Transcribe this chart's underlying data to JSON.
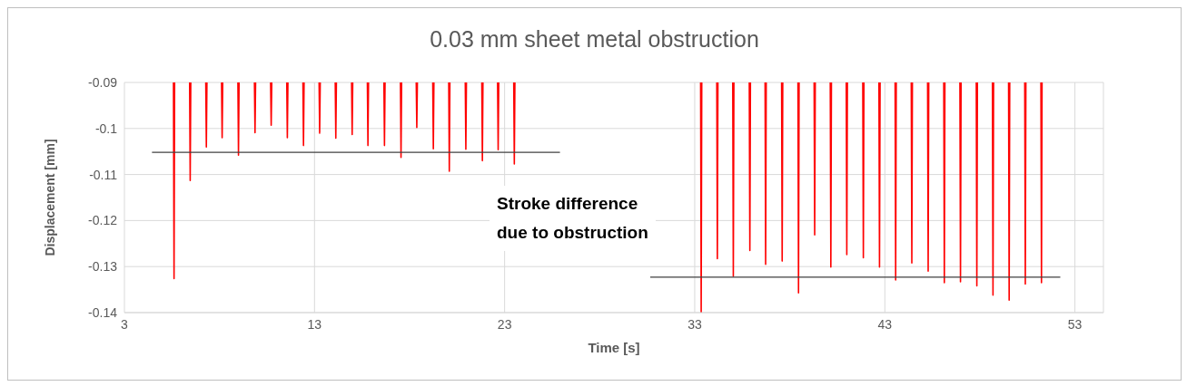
{
  "chart_data": {
    "type": "line",
    "title": "0.03 mm sheet metal obstruction",
    "xlabel": "Time [s]",
    "ylabel": "Displacement [mm]",
    "annotations": [
      "Stroke difference\ndue to obstruction"
    ],
    "xlim": [
      3,
      54.5
    ],
    "xticks": [
      3,
      13,
      23,
      33,
      43,
      53
    ],
    "ylim": [
      -0.14,
      -0.09
    ],
    "yticks": [
      -0.14,
      -0.13,
      -0.12,
      -0.11,
      -0.1,
      -0.09
    ],
    "grid": true,
    "marker": "none",
    "line_style": "solid",
    "series": [
      {
        "color": "#ff0000",
        "x": [
          5.58,
          5.61,
          5.64,
          5.66,
          6.43,
          6.46,
          6.49,
          6.51,
          7.28,
          7.31,
          7.34,
          7.36,
          8.11,
          8.14,
          8.17,
          8.19,
          8.97,
          9.0,
          9.03,
          9.05,
          9.84,
          9.87,
          9.9,
          9.92,
          10.69,
          10.72,
          10.75,
          10.77,
          11.54,
          11.57,
          11.6,
          11.62,
          12.39,
          12.42,
          12.45,
          12.47,
          13.24,
          13.27,
          13.3,
          13.32,
          14.09,
          14.12,
          14.15,
          14.17,
          14.95,
          14.98,
          15.01,
          15.03,
          15.78,
          15.81,
          15.84,
          15.86,
          16.65,
          16.68,
          16.71,
          16.73,
          17.52,
          17.55,
          17.58,
          17.6,
          18.35,
          18.38,
          18.41,
          18.43,
          19.22,
          19.25,
          19.28,
          19.3,
          20.06,
          20.09,
          20.12,
          20.14,
          20.93,
          20.96,
          20.99,
          21.01,
          21.8,
          21.83,
          21.86,
          21.88,
          22.63,
          22.66,
          22.69,
          22.71,
          23.48,
          23.51,
          23.54,
          23.56,
          33.31,
          33.34,
          33.37,
          33.39,
          34.16,
          34.19,
          34.22,
          34.24,
          35.0,
          35.03,
          35.06,
          35.08,
          35.87,
          35.9,
          35.93,
          35.95,
          36.7,
          36.73,
          36.76,
          36.78,
          37.57,
          37.6,
          37.63,
          37.65,
          38.43,
          38.46,
          38.49,
          38.51,
          39.28,
          39.31,
          39.34,
          39.36,
          40.13,
          40.16,
          40.19,
          40.21,
          40.97,
          41.0,
          41.03,
          41.05,
          41.84,
          41.87,
          41.9,
          41.92,
          42.69,
          42.72,
          42.75,
          42.77,
          43.54,
          43.57,
          43.6,
          43.62,
          44.39,
          44.42,
          44.45,
          44.47,
          45.25,
          45.28,
          45.31,
          45.33,
          46.1,
          46.13,
          46.16,
          46.18,
          46.95,
          46.98,
          47.01,
          47.03,
          47.81,
          47.84,
          47.87,
          47.89,
          48.66,
          48.69,
          48.72,
          48.74,
          49.51,
          49.54,
          49.57,
          49.59,
          50.36,
          50.39,
          50.42,
          50.44,
          51.21,
          51.24,
          51.27
        ],
        "values": [
          -0.09,
          -0.1326,
          -0.09,
          null,
          -0.09,
          -0.1113,
          -0.09,
          null,
          -0.09,
          -0.104,
          -0.09,
          null,
          -0.09,
          -0.102,
          -0.09,
          null,
          -0.09,
          -0.1058,
          -0.09,
          null,
          -0.09,
          -0.1009,
          -0.09,
          null,
          -0.09,
          -0.0993,
          -0.09,
          null,
          -0.09,
          -0.102,
          -0.09,
          null,
          -0.09,
          -0.1037,
          -0.09,
          null,
          -0.09,
          -0.101,
          -0.09,
          null,
          -0.09,
          -0.1021,
          -0.09,
          null,
          -0.09,
          -0.1013,
          -0.09,
          null,
          -0.09,
          -0.1037,
          -0.09,
          null,
          -0.09,
          -0.1037,
          -0.09,
          null,
          -0.09,
          -0.1063,
          -0.09,
          null,
          -0.09,
          -0.0998,
          -0.09,
          null,
          -0.09,
          -0.1044,
          -0.09,
          null,
          -0.09,
          -0.1093,
          -0.09,
          null,
          -0.09,
          -0.1045,
          -0.09,
          null,
          -0.09,
          -0.107,
          -0.09,
          null,
          -0.09,
          -0.1046,
          -0.09,
          null,
          -0.09,
          -0.1077,
          -0.09,
          null,
          -0.09,
          -0.14,
          -0.09,
          null,
          -0.09,
          -0.1283,
          -0.09,
          null,
          -0.09,
          -0.1321,
          -0.09,
          null,
          -0.09,
          -0.1265,
          -0.09,
          null,
          -0.09,
          -0.1295,
          -0.09,
          null,
          -0.09,
          -0.1288,
          -0.09,
          null,
          -0.09,
          -0.1357,
          -0.09,
          null,
          -0.09,
          -0.1231,
          -0.09,
          null,
          -0.09,
          -0.1301,
          -0.09,
          null,
          -0.09,
          -0.1274,
          -0.09,
          null,
          -0.09,
          -0.1281,
          -0.09,
          null,
          -0.09,
          -0.1301,
          -0.09,
          null,
          -0.09,
          -0.1329,
          -0.09,
          null,
          -0.09,
          -0.1292,
          -0.09,
          null,
          -0.09,
          -0.131,
          -0.09,
          null,
          -0.09,
          -0.1335,
          -0.09,
          null,
          -0.09,
          -0.1333,
          -0.09,
          null,
          -0.09,
          -0.1342,
          -0.09,
          null,
          -0.09,
          -0.1362,
          -0.09,
          null,
          -0.09,
          -0.1373,
          -0.09,
          null,
          -0.09,
          -0.1338,
          -0.09,
          null,
          -0.09,
          -0.1335,
          -0.09
        ]
      },
      {
        "color": "#404040",
        "x": [
          4.45,
          25.91
        ],
        "values": [
          -0.1052,
          -0.1052
        ]
      },
      {
        "color": "#404040",
        "x": [
          30.66,
          52.23
        ],
        "values": [
          -0.1323,
          -0.1323
        ]
      }
    ]
  }
}
